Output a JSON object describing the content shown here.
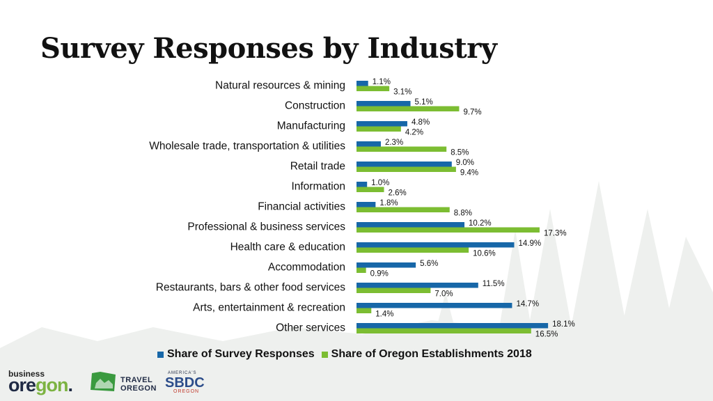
{
  "title": "Survey Responses by Industry",
  "colors": {
    "survey": "#1767a8",
    "establishments": "#7cbd32",
    "text": "#111111"
  },
  "chart_data": {
    "type": "bar",
    "orientation": "horizontal",
    "categories": [
      "Natural resources & mining",
      "Construction",
      "Manufacturing",
      "Wholesale trade, transportation & utilities",
      "Retail trade",
      "Information",
      "Financial activities",
      "Professional & business services",
      "Health care & education",
      "Accommodation",
      "Restaurants, bars & other food services",
      "Arts, entertainment & recreation",
      "Other services"
    ],
    "series": [
      {
        "name": "Share of Survey Responses",
        "values": [
          1.1,
          5.1,
          4.8,
          2.3,
          9.0,
          1.0,
          1.8,
          10.2,
          14.9,
          5.6,
          11.5,
          14.7,
          18.1
        ],
        "labels": [
          "1.1%",
          "5.1%",
          "4.8%",
          "2.3%",
          "9.0%",
          "1.0%",
          "1.8%",
          "10.2%",
          "14.9%",
          "5.6%",
          "11.5%",
          "14.7%",
          "18.1%"
        ]
      },
      {
        "name": "Share of Oregon Establishments 2018",
        "values": [
          3.1,
          9.7,
          4.2,
          8.5,
          9.4,
          2.6,
          8.8,
          17.3,
          10.6,
          0.9,
          7.0,
          1.4,
          16.5
        ],
        "labels": [
          "3.1%",
          "9.7%",
          "4.2%",
          "8.5%",
          "9.4%",
          "2.6%",
          "8.8%",
          "17.3%",
          "10.6%",
          "0.9%",
          "7.0%",
          "1.4%",
          "16.5%"
        ]
      }
    ],
    "xlim": [
      0,
      20
    ],
    "grid": false,
    "legend_position": "bottom"
  },
  "logos": {
    "business_oregon": {
      "top": "business",
      "main_a": "ore",
      "main_b": "gon",
      "mark": "."
    },
    "travel_oregon": {
      "line1": "TRAVEL",
      "line2": "OREGON"
    },
    "sbdc": {
      "top": "AMERICA'S",
      "main": "SBDC",
      "sub": "OREGON"
    }
  }
}
